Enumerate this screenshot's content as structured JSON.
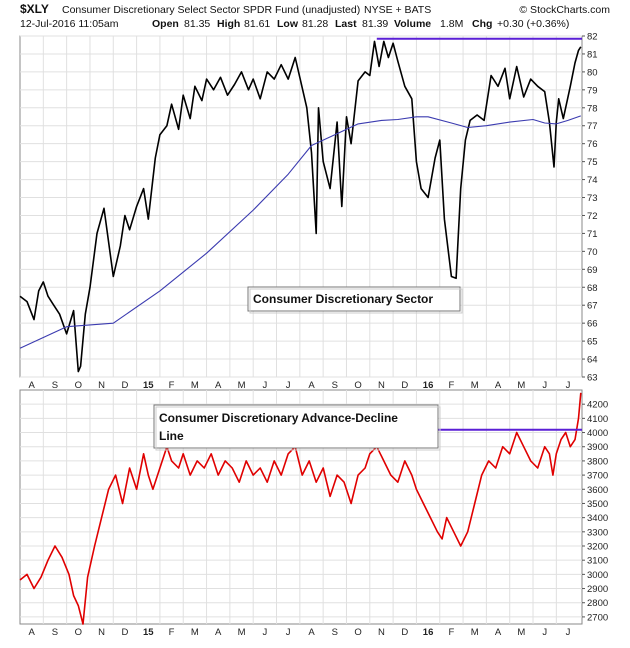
{
  "header": {
    "symbol": "$XLY",
    "name": "Consumer Discretionary Select Sector SPDR Fund (unadjusted)",
    "exchange": "NYSE + BATS",
    "source": "© StockCharts.com",
    "datetime": "12-Jul-2016 11:05am",
    "open_label": "Open",
    "open": "81.35",
    "high_label": "High",
    "high": "81.61",
    "low_label": "Low",
    "low": "81.28",
    "last_label": "Last",
    "last": "81.39",
    "volume_label": "Volume",
    "volume": "1.8M",
    "chg_label": "Chg",
    "chg": "+0.30 (+0.36%)"
  },
  "colors": {
    "price": "#000000",
    "moving_average": "#3b3bb0",
    "ad_line": "#e00000",
    "resistance": "#5a1fd6",
    "panel_border": "#8a8a8a",
    "grid": "#e0e0e0"
  },
  "chart_data": [
    {
      "type": "line",
      "annotation": "Consumer Discretionary Sector",
      "ylim": [
        63,
        82
      ],
      "yticks": [
        63,
        64,
        65,
        66,
        67,
        68,
        69,
        70,
        71,
        72,
        73,
        74,
        75,
        76,
        77,
        78,
        79,
        80,
        81,
        82
      ],
      "xticks": [
        {
          "label": "A",
          "t": 0.5
        },
        {
          "label": "S",
          "t": 1.5
        },
        {
          "label": "O",
          "t": 2.5
        },
        {
          "label": "N",
          "t": 3.5
        },
        {
          "label": "D",
          "t": 4.5
        },
        {
          "label": "15",
          "t": 5.5,
          "bold": true
        },
        {
          "label": "F",
          "t": 6.5
        },
        {
          "label": "M",
          "t": 7.5
        },
        {
          "label": "A",
          "t": 8.5
        },
        {
          "label": "M",
          "t": 9.5
        },
        {
          "label": "J",
          "t": 10.5
        },
        {
          "label": "J",
          "t": 11.5
        },
        {
          "label": "A",
          "t": 12.5
        },
        {
          "label": "S",
          "t": 13.5
        },
        {
          "label": "O",
          "t": 14.5
        },
        {
          "label": "N",
          "t": 15.5
        },
        {
          "label": "D",
          "t": 16.5
        },
        {
          "label": "16",
          "t": 17.5,
          "bold": true
        },
        {
          "label": "F",
          "t": 18.5
        },
        {
          "label": "M",
          "t": 19.5
        },
        {
          "label": "A",
          "t": 20.5
        },
        {
          "label": "M",
          "t": 21.5
        },
        {
          "label": "J",
          "t": 22.5
        },
        {
          "label": "J",
          "t": 23.5
        }
      ],
      "xlim": [
        0,
        24.1
      ],
      "series": [
        {
          "role": "price",
          "x": [
            0,
            0.3,
            0.6,
            0.8,
            1.0,
            1.2,
            1.4,
            1.7,
            2.0,
            2.3,
            2.5,
            2.6,
            2.8,
            3.0,
            3.3,
            3.6,
            4.0,
            4.3,
            4.5,
            4.7,
            5.0,
            5.3,
            5.5,
            5.8,
            6.0,
            6.3,
            6.5,
            6.8,
            7.0,
            7.3,
            7.5,
            7.8,
            8.0,
            8.3,
            8.6,
            8.9,
            9.2,
            9.5,
            9.8,
            10.0,
            10.3,
            10.6,
            10.9,
            11.2,
            11.5,
            11.8,
            12.0,
            12.3,
            12.5,
            12.7,
            12.8,
            13.0,
            13.3,
            13.6,
            13.8,
            14.0,
            14.2,
            14.5,
            14.8,
            15.0,
            15.2,
            15.4,
            15.6,
            15.8,
            16.0,
            16.2,
            16.5,
            16.8,
            17.0,
            17.2,
            17.5,
            17.8,
            18.0,
            18.2,
            18.5,
            18.7,
            18.9,
            19.1,
            19.3,
            19.6,
            19.9,
            20.2,
            20.5,
            20.8,
            21.0,
            21.3,
            21.6,
            21.9,
            22.2,
            22.5,
            22.7,
            22.9,
            23.0,
            23.1,
            23.3,
            23.6,
            23.8,
            23.95,
            24.05
          ],
          "y": [
            67.5,
            67.2,
            66.2,
            67.8,
            68.3,
            67.5,
            67.1,
            66.5,
            65.4,
            66.7,
            63.3,
            63.6,
            66.5,
            68.0,
            71.0,
            72.4,
            68.6,
            70.3,
            72.0,
            71.2,
            72.5,
            73.5,
            71.8,
            75.2,
            76.5,
            77.0,
            78.2,
            76.8,
            78.7,
            77.4,
            79.2,
            78.4,
            79.6,
            79.0,
            79.7,
            78.7,
            79.3,
            80.0,
            79.0,
            79.6,
            78.5,
            80.0,
            79.6,
            80.4,
            79.6,
            80.8,
            79.7,
            78.0,
            75.5,
            71.0,
            78.0,
            75.0,
            73.5,
            77.2,
            72.5,
            77.5,
            76.0,
            79.5,
            80.0,
            79.8,
            81.7,
            80.3,
            81.7,
            80.8,
            81.6,
            80.6,
            79.2,
            78.5,
            75.0,
            73.5,
            73.0,
            75.2,
            76.2,
            71.8,
            68.6,
            68.5,
            73.5,
            76.2,
            77.3,
            77.6,
            77.3,
            79.8,
            79.2,
            80.2,
            78.5,
            80.3,
            78.6,
            79.6,
            79.2,
            78.9,
            77.2,
            74.7,
            77.2,
            78.5,
            77.4,
            79.2,
            80.5,
            81.2,
            81.4
          ]
        },
        {
          "role": "moving_average",
          "x": [
            0,
            2,
            4,
            6,
            8,
            10,
            11.5,
            12.5,
            13.5,
            14.5,
            15.5,
            16.2,
            17,
            17.5,
            18.5,
            19.2,
            20,
            21,
            22,
            22.5,
            23,
            23.5,
            24.05
          ],
          "y": [
            64.6,
            65.8,
            66.0,
            67.8,
            69.9,
            72.3,
            74.3,
            75.9,
            76.5,
            77.1,
            77.3,
            77.35,
            77.5,
            77.5,
            77.15,
            76.9,
            77.0,
            77.2,
            77.35,
            77.15,
            77.1,
            77.3,
            77.55
          ]
        }
      ],
      "resistance": {
        "y": 81.85,
        "x": [
          15.3,
          24.1
        ]
      }
    },
    {
      "type": "line",
      "annotation": "Consumer Discretionary Advance-Decline Line",
      "ylim": [
        2650,
        4300
      ],
      "yticks": [
        2700,
        2800,
        2900,
        3000,
        3100,
        3200,
        3300,
        3400,
        3500,
        3600,
        3700,
        3800,
        3900,
        4000,
        4100,
        4200
      ],
      "xticks": [
        {
          "label": "A",
          "t": 0.5
        },
        {
          "label": "S",
          "t": 1.5
        },
        {
          "label": "O",
          "t": 2.5
        },
        {
          "label": "N",
          "t": 3.5
        },
        {
          "label": "D",
          "t": 4.5
        },
        {
          "label": "15",
          "t": 5.5,
          "bold": true
        },
        {
          "label": "F",
          "t": 6.5
        },
        {
          "label": "M",
          "t": 7.5
        },
        {
          "label": "A",
          "t": 8.5
        },
        {
          "label": "M",
          "t": 9.5
        },
        {
          "label": "J",
          "t": 10.5
        },
        {
          "label": "J",
          "t": 11.5
        },
        {
          "label": "A",
          "t": 12.5
        },
        {
          "label": "S",
          "t": 13.5
        },
        {
          "label": "O",
          "t": 14.5
        },
        {
          "label": "N",
          "t": 15.5
        },
        {
          "label": "D",
          "t": 16.5
        },
        {
          "label": "16",
          "t": 17.5,
          "bold": true
        },
        {
          "label": "F",
          "t": 18.5
        },
        {
          "label": "M",
          "t": 19.5
        },
        {
          "label": "A",
          "t": 20.5
        },
        {
          "label": "M",
          "t": 21.5
        },
        {
          "label": "J",
          "t": 22.5
        },
        {
          "label": "J",
          "t": 23.5
        }
      ],
      "xlim": [
        0,
        24.1
      ],
      "series": [
        {
          "role": "ad_line",
          "x": [
            0,
            0.3,
            0.6,
            0.9,
            1.2,
            1.5,
            1.8,
            2.1,
            2.3,
            2.5,
            2.7,
            2.9,
            3.2,
            3.5,
            3.8,
            4.1,
            4.4,
            4.7,
            5.0,
            5.3,
            5.5,
            5.7,
            6.0,
            6.3,
            6.5,
            6.8,
            7.0,
            7.3,
            7.6,
            7.9,
            8.2,
            8.5,
            8.8,
            9.1,
            9.4,
            9.7,
            10.0,
            10.3,
            10.6,
            10.9,
            11.2,
            11.5,
            11.8,
            12.1,
            12.4,
            12.7,
            13.0,
            13.3,
            13.6,
            13.9,
            14.2,
            14.5,
            14.8,
            15.0,
            15.3,
            15.6,
            15.9,
            16.2,
            16.5,
            16.8,
            17.0,
            17.3,
            17.6,
            17.9,
            18.1,
            18.3,
            18.6,
            18.9,
            19.2,
            19.5,
            19.8,
            20.1,
            20.4,
            20.7,
            21.0,
            21.3,
            21.6,
            21.9,
            22.2,
            22.5,
            22.7,
            22.85,
            23.0,
            23.2,
            23.4,
            23.6,
            23.8,
            23.95,
            24.05
          ],
          "y": [
            2960,
            3000,
            2900,
            2980,
            3100,
            3200,
            3120,
            3000,
            2850,
            2780,
            2650,
            2980,
            3200,
            3400,
            3600,
            3700,
            3500,
            3750,
            3600,
            3850,
            3700,
            3600,
            3750,
            3900,
            3800,
            3750,
            3850,
            3700,
            3800,
            3750,
            3850,
            3700,
            3800,
            3750,
            3650,
            3800,
            3700,
            3750,
            3650,
            3800,
            3700,
            3850,
            3900,
            3700,
            3800,
            3650,
            3750,
            3550,
            3700,
            3650,
            3500,
            3700,
            3750,
            3850,
            3900,
            3800,
            3700,
            3650,
            3800,
            3700,
            3600,
            3500,
            3400,
            3300,
            3250,
            3400,
            3300,
            3200,
            3300,
            3500,
            3700,
            3800,
            3750,
            3900,
            3850,
            4000,
            3900,
            3800,
            3750,
            3900,
            3850,
            3700,
            3850,
            3950,
            4000,
            3900,
            3950,
            4100,
            4280
          ]
        }
      ],
      "resistance": {
        "y": 4020,
        "x": [
          17.6,
          24.1
        ]
      }
    }
  ]
}
